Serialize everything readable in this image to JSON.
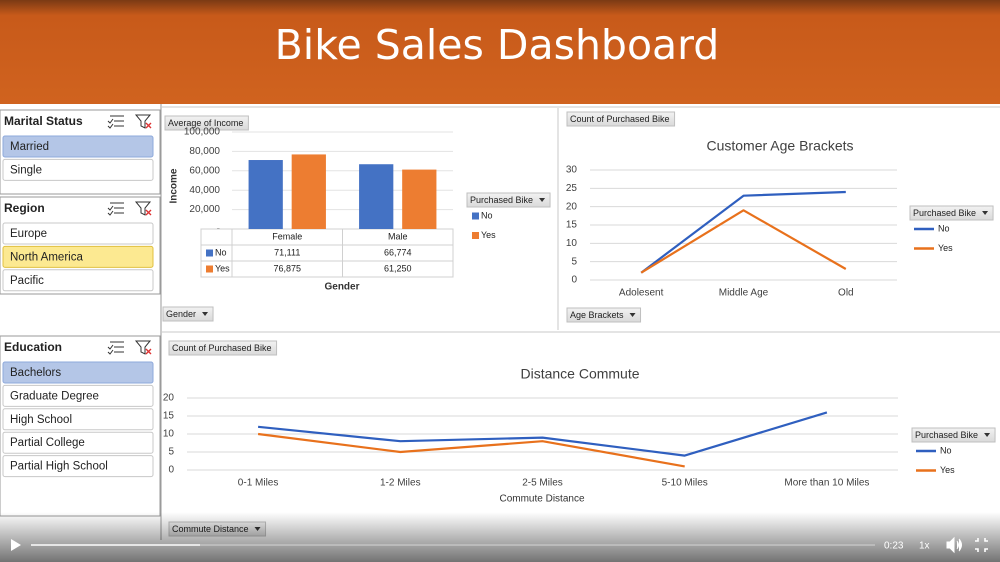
{
  "header": {
    "title": "Bike Sales Dashboard"
  },
  "slicers": [
    {
      "title": "Marital Status",
      "items": [
        {
          "label": "Married",
          "state": "selected"
        },
        {
          "label": "Single",
          "state": "normal"
        }
      ]
    },
    {
      "title": "Region",
      "items": [
        {
          "label": "Europe",
          "state": "normal"
        },
        {
          "label": "North America",
          "state": "hover"
        },
        {
          "label": "Pacific",
          "state": "normal"
        }
      ]
    },
    {
      "title": "Education",
      "items": [
        {
          "label": "Bachelors",
          "state": "selected"
        },
        {
          "label": "Graduate Degree",
          "state": "normal"
        },
        {
          "label": "High School",
          "state": "normal"
        },
        {
          "label": "Partial College",
          "state": "normal"
        },
        {
          "label": "Partial High School",
          "state": "normal"
        }
      ]
    }
  ],
  "chart_data": [
    {
      "type": "bar",
      "value_field": "Average of Income",
      "axis_field": "Gender",
      "legend_title": "Purchased Bike",
      "y_label": "Income",
      "x_label": "Gender",
      "categories": [
        "Female",
        "Male"
      ],
      "series": [
        {
          "name": "No",
          "color": "#4472c4",
          "values": [
            71111,
            66774
          ],
          "value_labels": [
            "71,111",
            "66,774"
          ]
        },
        {
          "name": "Yes",
          "color": "#ed7d31",
          "values": [
            76875,
            61250
          ],
          "value_labels": [
            "76,875",
            "61,250"
          ]
        }
      ],
      "ylim": [
        0,
        100000
      ],
      "yticks": [
        {
          "value": 0,
          "label": "-"
        },
        {
          "value": 20000,
          "label": "20,000"
        },
        {
          "value": 40000,
          "label": "40,000"
        },
        {
          "value": 60000,
          "label": "60,000"
        },
        {
          "value": 80000,
          "label": "80,000"
        },
        {
          "value": 100000,
          "label": "100,000"
        }
      ],
      "grid": true,
      "legend": "right"
    },
    {
      "type": "line",
      "value_field": "Count of Purchased Bike",
      "axis_field": "Age Brackets",
      "legend_title": "Purchased Bike",
      "title": "Customer Age Brackets",
      "categories": [
        "Adolesent",
        "Middle Age",
        "Old"
      ],
      "series": [
        {
          "name": "No",
          "color": "#2f5fbf",
          "values": [
            2,
            23,
            24
          ]
        },
        {
          "name": "Yes",
          "color": "#e8711c",
          "values": [
            2,
            19,
            3
          ]
        }
      ],
      "ylim": [
        0,
        30
      ],
      "yticks": [
        0,
        5,
        10,
        15,
        20,
        25,
        30
      ],
      "grid": true,
      "legend": "right"
    },
    {
      "type": "line",
      "value_field": "Count of Purchased Bike",
      "axis_field": "Commute Distance",
      "legend_title": "Purchased Bike",
      "title": "Distance Commute",
      "x_label": "Commute Distance",
      "categories": [
        "0-1 Miles",
        "1-2 Miles",
        "2-5 Miles",
        "5-10 Miles",
        "More than 10 Miles"
      ],
      "series": [
        {
          "name": "No",
          "color": "#2f5fbf",
          "values": [
            12,
            8,
            9,
            4,
            16
          ]
        },
        {
          "name": "Yes",
          "color": "#e8711c",
          "values": [
            10,
            5,
            8,
            1,
            null
          ]
        }
      ],
      "ylim": [
        0,
        20
      ],
      "yticks": [
        0,
        5,
        10,
        15,
        20
      ],
      "grid": true,
      "legend": "right"
    }
  ],
  "player": {
    "time": "0:23",
    "speed": "1x"
  }
}
